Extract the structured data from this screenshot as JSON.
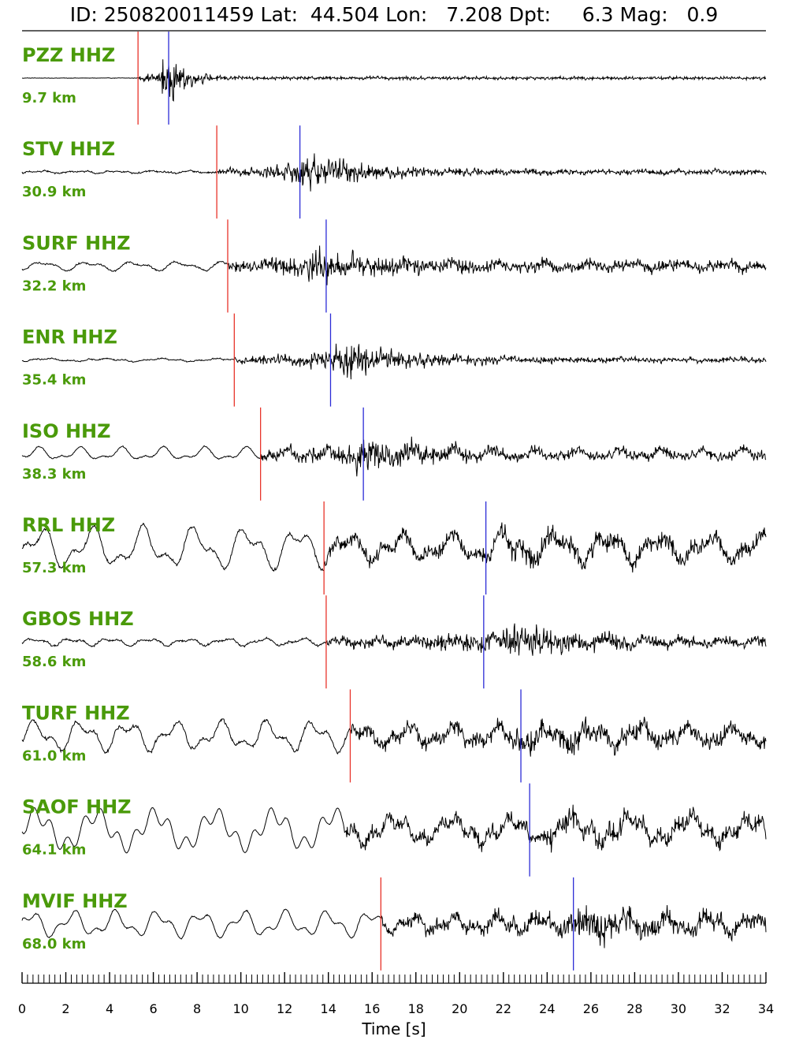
{
  "chart_data": {
    "type": "line",
    "title": "ID: 250820011459 Lat:  44.504 Lon:   7.208 Dpt:     6.3 Mag:   0.9",
    "xlabel": "Time [s]",
    "ylabel": "",
    "xlim": [
      0,
      34
    ],
    "x_ticks": [
      "0",
      "2",
      "4",
      "6",
      "8",
      "10",
      "12",
      "14",
      "16",
      "18",
      "20",
      "22",
      "24",
      "26",
      "28",
      "30",
      "32",
      "34"
    ],
    "minor_tick_step": 0.25,
    "grid": false,
    "label_color": "#4a9a0a",
    "p_pick_color": "#e8332a",
    "s_pick_color": "#2b2bd6",
    "trace_color": "#000000",
    "traces": [
      {
        "station": "PZZ HHZ",
        "distance": "9.7 km",
        "p_pick": 5.3,
        "s_pick": 6.7,
        "pre_noise": 0.01,
        "low_freq_amp": 0.0,
        "peak_time": 7.0,
        "peak_amp": 0.95,
        "coda_level": 0.08,
        "decay": 2.0,
        "clip": false
      },
      {
        "station": "STV HHZ",
        "distance": "30.9 km",
        "p_pick": 8.9,
        "s_pick": 12.7,
        "pre_noise": 0.04,
        "low_freq_amp": 0.03,
        "peak_time": 13.0,
        "peak_amp": 0.9,
        "coda_level": 0.12,
        "decay": 8.0,
        "clip": false
      },
      {
        "station": "SURF HHZ",
        "distance": "32.2 km",
        "p_pick": 9.4,
        "s_pick": 13.9,
        "pre_noise": 0.04,
        "low_freq_amp": 0.12,
        "peak_time": 13.5,
        "peak_amp": 0.85,
        "coda_level": 0.25,
        "decay": 9.0,
        "clip": false
      },
      {
        "station": "ENR HHZ",
        "distance": "35.4 km",
        "p_pick": 9.7,
        "s_pick": 14.1,
        "pre_noise": 0.03,
        "low_freq_amp": 0.04,
        "peak_time": 14.8,
        "peak_amp": 0.9,
        "coda_level": 0.12,
        "decay": 8.0,
        "clip": false
      },
      {
        "station": "ISO HHZ",
        "distance": "38.3 km",
        "p_pick": 10.9,
        "s_pick": 15.6,
        "pre_noise": 0.03,
        "low_freq_amp": 0.18,
        "peak_time": 15.8,
        "peak_amp": 0.85,
        "coda_level": 0.22,
        "decay": 9.0,
        "clip": false
      },
      {
        "station": "RRL HHZ",
        "distance": "57.3 km",
        "p_pick": 13.8,
        "s_pick": 21.2,
        "pre_noise": 0.08,
        "low_freq_amp": 0.55,
        "peak_time": 22.5,
        "peak_amp": 0.65,
        "coda_level": 0.35,
        "decay": 12.0,
        "clip": false
      },
      {
        "station": "GBOS HHZ",
        "distance": "58.6 km",
        "p_pick": 13.9,
        "s_pick": 21.1,
        "pre_noise": 0.05,
        "low_freq_amp": 0.1,
        "peak_time": 22.5,
        "peak_amp": 0.85,
        "coda_level": 0.2,
        "decay": 10.0,
        "clip": false
      },
      {
        "station": "TURF HHZ",
        "distance": "61.0 km",
        "p_pick": 15.0,
        "s_pick": 22.8,
        "pre_noise": 0.08,
        "low_freq_amp": 0.4,
        "peak_time": 23.0,
        "peak_amp": 0.7,
        "coda_level": 0.35,
        "decay": 12.0,
        "clip": false
      },
      {
        "station": "SAOF HHZ",
        "distance": "64.1 km",
        "p_pick": null,
        "s_pick": 23.2,
        "pre_noise": 0.02,
        "low_freq_amp": 0.55,
        "peak_time": 24.5,
        "peak_amp": 0.65,
        "coda_level": 0.35,
        "decay": 10.0,
        "clip": false
      },
      {
        "station": "MVIF HHZ",
        "distance": "68.0 km",
        "p_pick": 16.4,
        "s_pick": 25.2,
        "pre_noise": 0.03,
        "low_freq_amp": 0.35,
        "peak_time": 26.0,
        "peak_amp": 0.85,
        "coda_level": 0.3,
        "decay": 10.0,
        "clip": false
      }
    ]
  }
}
